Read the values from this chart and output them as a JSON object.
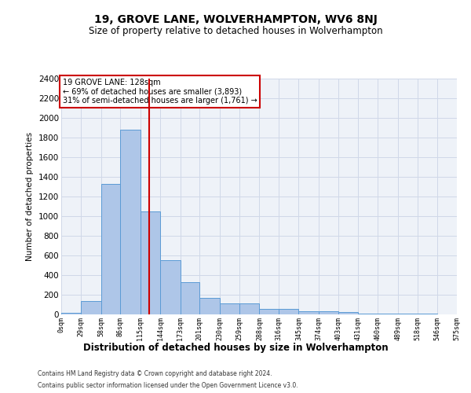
{
  "title": "19, GROVE LANE, WOLVERHAMPTON, WV6 8NJ",
  "subtitle": "Size of property relative to detached houses in Wolverhampton",
  "xlabel": "Distribution of detached houses by size in Wolverhampton",
  "ylabel": "Number of detached properties",
  "footer_line1": "Contains HM Land Registry data © Crown copyright and database right 2024.",
  "footer_line2": "Contains public sector information licensed under the Open Government Licence v3.0.",
  "annotation_title": "19 GROVE LANE: 128sqm",
  "annotation_line1": "← 69% of detached houses are smaller (3,893)",
  "annotation_line2": "31% of semi-detached houses are larger (1,761) →",
  "property_size": 128,
  "bar_color": "#aec6e8",
  "bar_edge_color": "#5b9bd5",
  "vline_color": "#cc0000",
  "annotation_box_color": "#cc0000",
  "grid_color": "#d0d8e8",
  "background_color": "#eef2f8",
  "bin_edges": [
    0,
    29,
    58,
    86,
    115,
    144,
    173,
    201,
    230,
    259,
    288,
    316,
    345,
    374,
    403,
    431,
    460,
    489,
    518,
    546,
    575
  ],
  "bin_labels": [
    "0sqm",
    "29sqm",
    "58sqm",
    "86sqm",
    "115sqm",
    "144sqm",
    "173sqm",
    "201sqm",
    "230sqm",
    "259sqm",
    "288sqm",
    "316sqm",
    "345sqm",
    "374sqm",
    "403sqm",
    "431sqm",
    "460sqm",
    "489sqm",
    "518sqm",
    "546sqm",
    "575sqm"
  ],
  "bar_heights": [
    20,
    140,
    1330,
    1880,
    1050,
    550,
    330,
    170,
    110,
    110,
    55,
    55,
    30,
    30,
    25,
    5,
    5,
    5,
    5,
    2
  ],
  "ylim": [
    0,
    2400
  ],
  "yticks": [
    0,
    200,
    400,
    600,
    800,
    1000,
    1200,
    1400,
    1600,
    1800,
    2000,
    2200,
    2400
  ]
}
